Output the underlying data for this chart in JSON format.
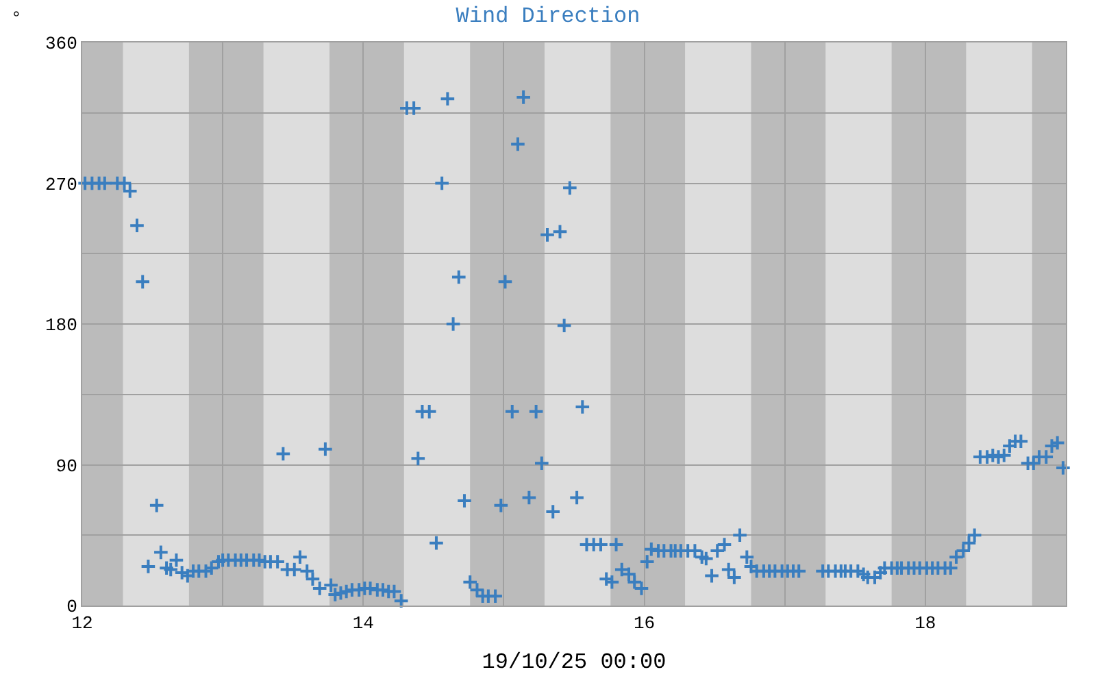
{
  "chart_data": {
    "type": "scatter",
    "title": "Wind Direction",
    "xlabel": "19/10/25 00:00",
    "ylabel": "°",
    "marker": "cross",
    "grid": true,
    "xlim": [
      12,
      19
    ],
    "xticks": [
      12,
      {
        "value": 13,
        "label": null
      },
      14,
      {
        "value": 15,
        "label": null
      },
      16,
      {
        "value": 17,
        "label": null
      },
      18
    ],
    "ylim": [
      0,
      360
    ],
    "yticks": [
      0,
      {
        "value": 45,
        "label": null
      },
      90,
      {
        "value": 135,
        "label": null
      },
      180,
      {
        "value": 225,
        "label": null
      },
      270,
      {
        "value": 315,
        "label": null
      },
      360
    ],
    "bands": [
      {
        "axis": "x",
        "from": 12,
        "to": 12.29,
        "color": "#bbbbbb"
      },
      {
        "axis": "x",
        "from": 12.76,
        "to": 13.29,
        "color": "#bbbbbb"
      },
      {
        "axis": "x",
        "from": 13.76,
        "to": 14.29,
        "color": "#bbbbbb"
      },
      {
        "axis": "x",
        "from": 14.76,
        "to": 15.29,
        "color": "#bbbbbb"
      },
      {
        "axis": "x",
        "from": 15.76,
        "to": 16.29,
        "color": "#bbbbbb"
      },
      {
        "axis": "x",
        "from": 16.76,
        "to": 17.29,
        "color": "#bbbbbb"
      },
      {
        "axis": "x",
        "from": 17.76,
        "to": 18.29,
        "color": "#bbbbbb"
      },
      {
        "axis": "x",
        "from": 18.76,
        "to": 19,
        "color": "#bbbbbb"
      }
    ],
    "series": [
      {
        "color": "#3a7ebf",
        "x": [
          12.02,
          12.07,
          12.12,
          12.16,
          12.25,
          12.3,
          12.34,
          12.39,
          12.43,
          12.47,
          12.53,
          12.56,
          12.6,
          12.63,
          12.67,
          12.71,
          12.75,
          12.79,
          12.83,
          12.88,
          12.92,
          12.97,
          13.0,
          13.04,
          13.09,
          13.13,
          13.17,
          13.22,
          13.26,
          13.3,
          13.34,
          13.39,
          13.43,
          13.46,
          13.51,
          13.55,
          13.6,
          13.64,
          13.69,
          13.73,
          13.77,
          13.8,
          13.84,
          13.88,
          13.92,
          13.97,
          14.01,
          14.05,
          14.1,
          14.14,
          14.18,
          14.22,
          14.27,
          14.31,
          14.36,
          14.39,
          14.42,
          14.47,
          14.52,
          14.56,
          14.6,
          14.64,
          14.68,
          14.72,
          14.76,
          14.81,
          14.85,
          14.89,
          14.94,
          14.98,
          15.01,
          15.06,
          15.1,
          15.14,
          15.18,
          15.23,
          15.27,
          15.31,
          15.35,
          15.4,
          15.43,
          15.47,
          15.52,
          15.56,
          15.59,
          15.64,
          15.69,
          15.73,
          15.77,
          15.8,
          15.84,
          15.89,
          15.93,
          15.98,
          16.02,
          16.05,
          16.1,
          16.14,
          16.19,
          16.22,
          16.26,
          16.31,
          16.36,
          16.41,
          16.44,
          16.48,
          16.52,
          16.57,
          16.6,
          16.64,
          16.68,
          16.73,
          16.76,
          16.8,
          16.85,
          16.89,
          16.93,
          16.98,
          17.02,
          17.06,
          17.1,
          17.27,
          17.31,
          17.36,
          17.4,
          17.43,
          17.47,
          17.52,
          17.56,
          17.59,
          17.64,
          17.68,
          17.71,
          17.76,
          17.8,
          17.83,
          17.88,
          17.92,
          17.96,
          18.01,
          18.05,
          18.09,
          18.14,
          18.18,
          18.22,
          18.27,
          18.31,
          18.35,
          18.39,
          18.44,
          18.48,
          18.52,
          18.56,
          18.6,
          18.64,
          18.68,
          18.73,
          18.77,
          18.81,
          18.86,
          18.9,
          18.94,
          18.98
        ],
        "values": [
          270,
          270,
          270,
          270,
          270,
          270,
          265,
          243,
          207,
          25,
          64,
          34,
          24,
          23,
          29,
          21,
          19,
          22,
          22,
          22,
          24,
          28,
          29,
          29,
          29,
          29,
          29,
          29,
          29,
          28,
          28,
          28,
          97,
          23,
          23,
          31,
          22,
          17,
          11,
          100,
          13,
          7,
          8,
          9,
          10,
          10,
          11,
          11,
          10,
          10,
          9,
          9,
          3,
          318,
          318,
          94,
          124,
          124,
          40,
          270,
          324,
          180,
          210,
          67,
          15,
          10,
          6,
          6,
          6,
          64,
          207,
          124,
          295,
          325,
          69,
          124,
          91,
          237,
          60,
          239,
          179,
          267,
          69,
          127,
          39,
          39,
          39,
          17,
          15,
          39,
          23,
          20,
          15,
          11,
          28,
          36,
          35,
          35,
          35,
          35,
          35,
          35,
          35,
          31,
          30,
          19,
          35,
          39,
          23,
          18,
          45,
          31,
          25,
          22,
          22,
          22,
          22,
          22,
          22,
          22,
          22,
          22,
          22,
          22,
          22,
          22,
          22,
          22,
          20,
          18,
          18,
          21,
          24,
          24,
          24,
          24,
          24,
          24,
          24,
          24,
          24,
          24,
          24,
          24,
          31,
          35,
          40,
          45,
          95,
          95,
          96,
          95,
          96,
          102,
          105,
          105,
          91,
          91,
          95,
          95,
          102,
          104,
          88
        ]
      }
    ]
  }
}
